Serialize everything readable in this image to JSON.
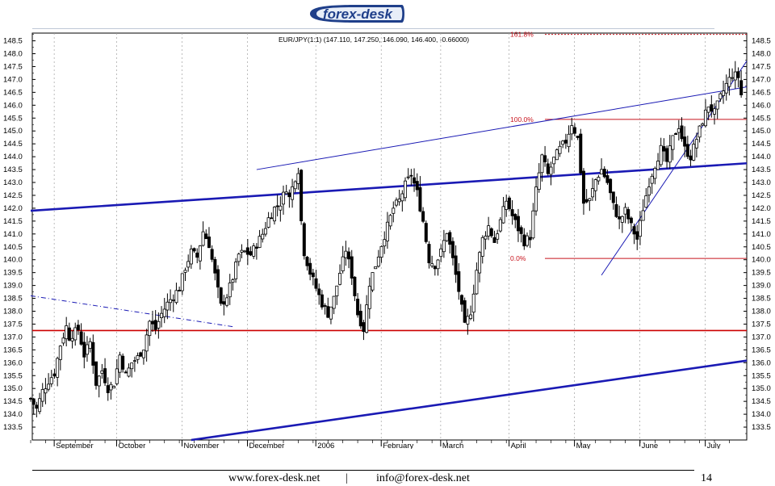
{
  "header": {
    "logo_text": "forex-desk"
  },
  "footer": {
    "website": "www.forex-desk.net",
    "separator": "|",
    "email": "info@forex-desk.net",
    "page_number": "14"
  },
  "colors": {
    "trend_blue": "#1a1ab4",
    "fib_red": "#c8141e",
    "support_red": "#cc0000",
    "candle": "#000000",
    "grid": "#a0a0a0"
  },
  "chart_data": {
    "type": "candlestick",
    "title": "EUR/JPY(1:1) (147.110, 147.250, 146.090, 146.400, -0.66000)",
    "ylim": [
      133,
      148.8
    ],
    "y_ticks": [
      133.5,
      134.0,
      134.5,
      135.0,
      135.5,
      136.0,
      136.5,
      137.0,
      137.5,
      138.0,
      138.5,
      139.0,
      139.5,
      140.0,
      140.5,
      141.0,
      141.5,
      142.0,
      142.5,
      143.0,
      143.5,
      144.0,
      144.5,
      145.0,
      145.5,
      146.0,
      146.5,
      147.0,
      147.5,
      148.0,
      148.5
    ],
    "x_range": [
      0,
      230
    ],
    "month_labels": [
      {
        "label": "September",
        "x": 9
      },
      {
        "label": "October",
        "x": 30
      },
      {
        "label": "November",
        "x": 52
      },
      {
        "label": "December",
        "x": 74
      },
      {
        "label": "2006",
        "x": 97
      },
      {
        "label": "February",
        "x": 119
      },
      {
        "label": "March",
        "x": 139
      },
      {
        "label": "April",
        "x": 162
      },
      {
        "label": "May",
        "x": 184
      },
      {
        "label": "June",
        "x": 206
      },
      {
        "label": "July",
        "x": 228
      }
    ],
    "fibonacci": [
      {
        "label": "161.8%",
        "value": 148.75
      },
      {
        "label": "100.0%",
        "value": 145.45
      },
      {
        "label": "0.0%",
        "value": 140.05
      }
    ],
    "horizontal_support": 137.25,
    "trendlines": [
      {
        "name": "upper-channel",
        "from": [
          76,
          143.5
        ],
        "to": [
          248,
          146.85
        ],
        "style": "thin",
        "color": "#1a1ab4"
      },
      {
        "name": "mid-channel",
        "from": [
          0,
          141.9
        ],
        "to": [
          248,
          143.8
        ],
        "style": "thick",
        "color": "#1a1ab4"
      },
      {
        "name": "lower-channel",
        "from": [
          54,
          133
        ],
        "to": [
          248,
          136.2
        ],
        "style": "thick",
        "color": "#1a1ab4"
      },
      {
        "name": "rising-support",
        "from": [
          192,
          139.4
        ],
        "to": [
          239,
          147.4
        ],
        "style": "thin",
        "color": "#1a1ab4"
      },
      {
        "name": "falling-resistance",
        "from": [
          0,
          138.6
        ],
        "to": [
          68,
          137.4
        ],
        "style": "dashdot",
        "color": "#1a1ab4"
      }
    ],
    "close_path": [
      [
        0,
        134.6
      ],
      [
        2,
        134.2
      ],
      [
        4,
        134.9
      ],
      [
        6,
        135.3
      ],
      [
        8,
        135.6
      ],
      [
        10,
        136.7
      ],
      [
        12,
        137.4
      ],
      [
        13,
        137.0
      ],
      [
        16,
        137.3
      ],
      [
        18,
        136.3
      ],
      [
        20,
        136.8
      ],
      [
        22,
        135.2
      ],
      [
        24,
        135.7
      ],
      [
        26,
        135.0
      ],
      [
        28,
        135.2
      ],
      [
        30,
        136.3
      ],
      [
        32,
        135.5
      ],
      [
        34,
        136.0
      ],
      [
        36,
        136.2
      ],
      [
        38,
        136.6
      ],
      [
        40,
        137.6
      ],
      [
        42,
        137.3
      ],
      [
        44,
        137.9
      ],
      [
        46,
        138.3
      ],
      [
        48,
        138.6
      ],
      [
        50,
        138.9
      ],
      [
        52,
        139.7
      ],
      [
        54,
        140.3
      ],
      [
        56,
        140.1
      ],
      [
        58,
        141.1
      ],
      [
        60,
        140.6
      ],
      [
        62,
        139.4
      ],
      [
        64,
        138.2
      ],
      [
        66,
        138.6
      ],
      [
        68,
        139.3
      ],
      [
        70,
        140.2
      ],
      [
        72,
        140.3
      ],
      [
        74,
        140.2
      ],
      [
        76,
        140.6
      ],
      [
        78,
        141.0
      ],
      [
        80,
        141.6
      ],
      [
        82,
        142.0
      ],
      [
        84,
        142.2
      ],
      [
        86,
        142.8
      ],
      [
        87,
        142.4
      ],
      [
        89,
        143.2
      ],
      [
        90,
        143.5
      ],
      [
        91,
        141.5
      ],
      [
        92,
        140.3
      ],
      [
        94,
        139.5
      ],
      [
        96,
        138.9
      ],
      [
        98,
        138.3
      ],
      [
        100,
        137.9
      ],
      [
        102,
        138.5
      ],
      [
        104,
        139.5
      ],
      [
        106,
        140.4
      ],
      [
        108,
        139.4
      ],
      [
        110,
        137.9
      ],
      [
        112,
        137.3
      ],
      [
        114,
        139.1
      ],
      [
        116,
        139.8
      ],
      [
        118,
        140.6
      ],
      [
        120,
        141.3
      ],
      [
        122,
        142.0
      ],
      [
        124,
        142.3
      ],
      [
        126,
        142.9
      ],
      [
        128,
        143.3
      ],
      [
        130,
        142.6
      ],
      [
        132,
        141.5
      ],
      [
        134,
        140.0
      ],
      [
        136,
        139.8
      ],
      [
        138,
        140.3
      ],
      [
        140,
        141.1
      ],
      [
        142,
        140.0
      ],
      [
        144,
        138.8
      ],
      [
        146,
        137.4
      ],
      [
        148,
        138.0
      ],
      [
        150,
        139.6
      ],
      [
        152,
        140.8
      ],
      [
        154,
        141.3
      ],
      [
        156,
        140.7
      ],
      [
        158,
        141.5
      ],
      [
        160,
        142.3
      ],
      [
        162,
        141.7
      ],
      [
        164,
        141.2
      ],
      [
        166,
        140.7
      ],
      [
        168,
        140.9
      ],
      [
        170,
        142.7
      ],
      [
        172,
        144.0
      ],
      [
        174,
        143.3
      ],
      [
        176,
        143.9
      ],
      [
        178,
        144.3
      ],
      [
        180,
        144.6
      ],
      [
        182,
        145.3
      ],
      [
        184,
        144.7
      ],
      [
        186,
        142.2
      ],
      [
        188,
        142.3
      ],
      [
        190,
        143.1
      ],
      [
        192,
        143.5
      ],
      [
        194,
        143.0
      ],
      [
        196,
        142.1
      ],
      [
        198,
        141.5
      ],
      [
        200,
        141.9
      ],
      [
        202,
        141.3
      ],
      [
        204,
        140.8
      ],
      [
        206,
        142.0
      ],
      [
        208,
        143.0
      ],
      [
        210,
        143.7
      ],
      [
        212,
        144.3
      ],
      [
        214,
        143.8
      ],
      [
        216,
        144.7
      ],
      [
        218,
        145.2
      ],
      [
        220,
        144.3
      ],
      [
        222,
        144.0
      ],
      [
        224,
        144.7
      ],
      [
        226,
        145.4
      ],
      [
        228,
        146.0
      ],
      [
        230,
        145.7
      ],
      [
        232,
        146.3
      ],
      [
        234,
        146.8
      ],
      [
        236,
        147.2
      ],
      [
        238,
        147.1
      ],
      [
        239,
        146.4
      ]
    ]
  }
}
